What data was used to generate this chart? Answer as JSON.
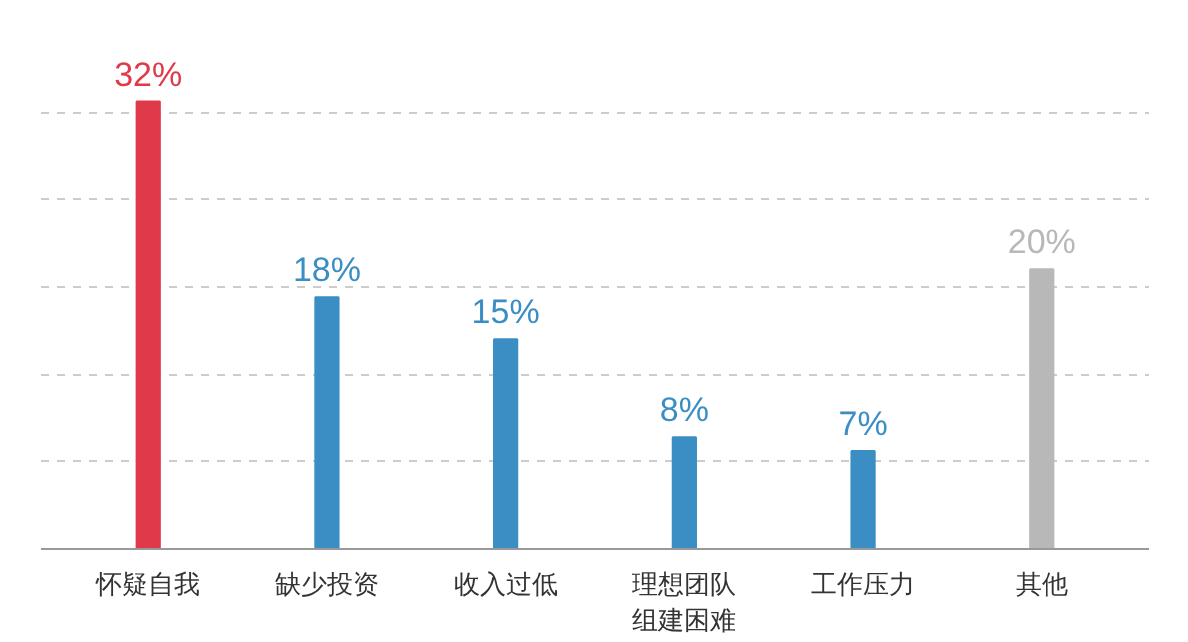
{
  "chart_data": {
    "type": "bar",
    "categories": [
      "怀疑自我",
      "缺少投资",
      "收入过低",
      "理想团队组建困难",
      "工作压力",
      "其他"
    ],
    "values": [
      32,
      18,
      15,
      8,
      7,
      20
    ],
    "colors": [
      "#e0394a",
      "#3a8ec4",
      "#3a8ec4",
      "#3a8ec4",
      "#3a8ec4",
      "#b8b8b8"
    ],
    "data_labels": true,
    "value_labels": [
      "32%",
      "18%",
      "15%",
      "8%",
      "7%",
      "20%"
    ],
    "yticks": [
      {
        "value": 6.25,
        "label": null
      },
      {
        "value": 12.5,
        "label": null
      },
      {
        "value": 18.75,
        "label": null
      },
      {
        "value": 25,
        "label": null
      },
      {
        "value": 31.25,
        "label": null
      }
    ],
    "grid": "y",
    "tick_labels": "x"
  }
}
